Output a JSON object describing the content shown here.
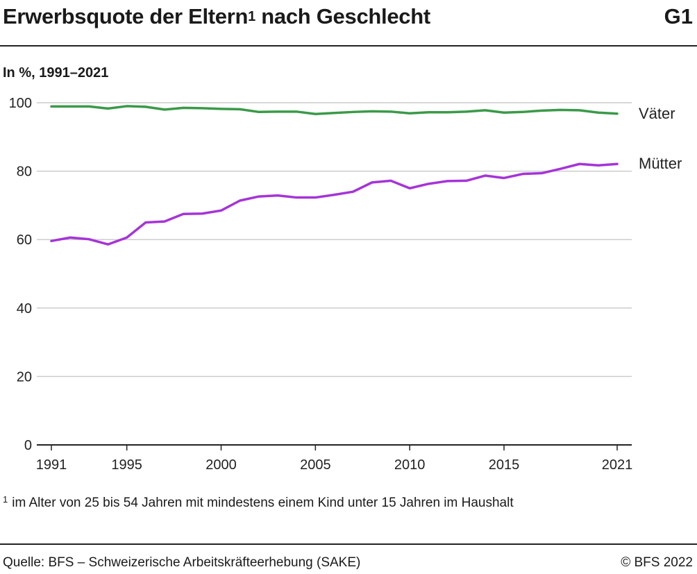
{
  "header": {
    "title": "Erwerbsquote der Eltern",
    "title_sup": "1",
    "title_rest": " nach Geschlecht",
    "code": "G1",
    "subtitle": "In %, 1991–2021"
  },
  "footer": {
    "footnote_mark": "1",
    "footnote": "im Alter von 25 bis 54 Jahren mit mindestens einem Kind unter 15 Jahren im Haushalt",
    "source": "Quelle: BFS – Schweizerische Arbeitskräfteerhebung (SAKE)",
    "copyright": "© BFS 2022"
  },
  "colors": {
    "vaeter": "#3a9a48",
    "muetter": "#a534d8",
    "grid": "#cccccc",
    "axis": "#222222"
  },
  "chart_data": {
    "type": "line",
    "x": [
      1991,
      1992,
      1993,
      1994,
      1995,
      1996,
      1997,
      1998,
      1999,
      2000,
      2001,
      2002,
      2003,
      2004,
      2005,
      2006,
      2007,
      2008,
      2009,
      2010,
      2011,
      2012,
      2013,
      2014,
      2015,
      2016,
      2017,
      2018,
      2019,
      2020,
      2021
    ],
    "series": [
      {
        "name": "Väter",
        "color": "#3a9a48",
        "values": [
          98.9,
          98.9,
          98.9,
          98.3,
          99.0,
          98.8,
          98.0,
          98.5,
          98.4,
          98.2,
          98.1,
          97.3,
          97.4,
          97.4,
          96.7,
          97.0,
          97.3,
          97.5,
          97.4,
          96.9,
          97.2,
          97.2,
          97.4,
          97.8,
          97.1,
          97.3,
          97.7,
          97.9,
          97.8,
          97.1,
          96.8
        ]
      },
      {
        "name": "Mütter",
        "color": "#a534d8",
        "values": [
          59.6,
          60.6,
          60.1,
          58.6,
          60.6,
          65.0,
          65.3,
          67.5,
          67.6,
          68.5,
          71.4,
          72.6,
          72.9,
          72.3,
          72.3,
          73.1,
          74.0,
          76.7,
          77.2,
          75.0,
          76.3,
          77.1,
          77.2,
          78.7,
          78.0,
          79.2,
          79.4,
          80.7,
          82.1,
          81.7,
          82.1
        ]
      }
    ],
    "x_ticks": [
      "1991",
      "1995",
      "2000",
      "2005",
      "2010",
      "2015",
      "2021"
    ],
    "y_ticks": [
      "0",
      "20",
      "40",
      "60",
      "80",
      "100"
    ],
    "ylim": [
      0,
      100
    ],
    "xlim": [
      1991,
      2021
    ],
    "grid": true,
    "legend": "inline-right"
  }
}
